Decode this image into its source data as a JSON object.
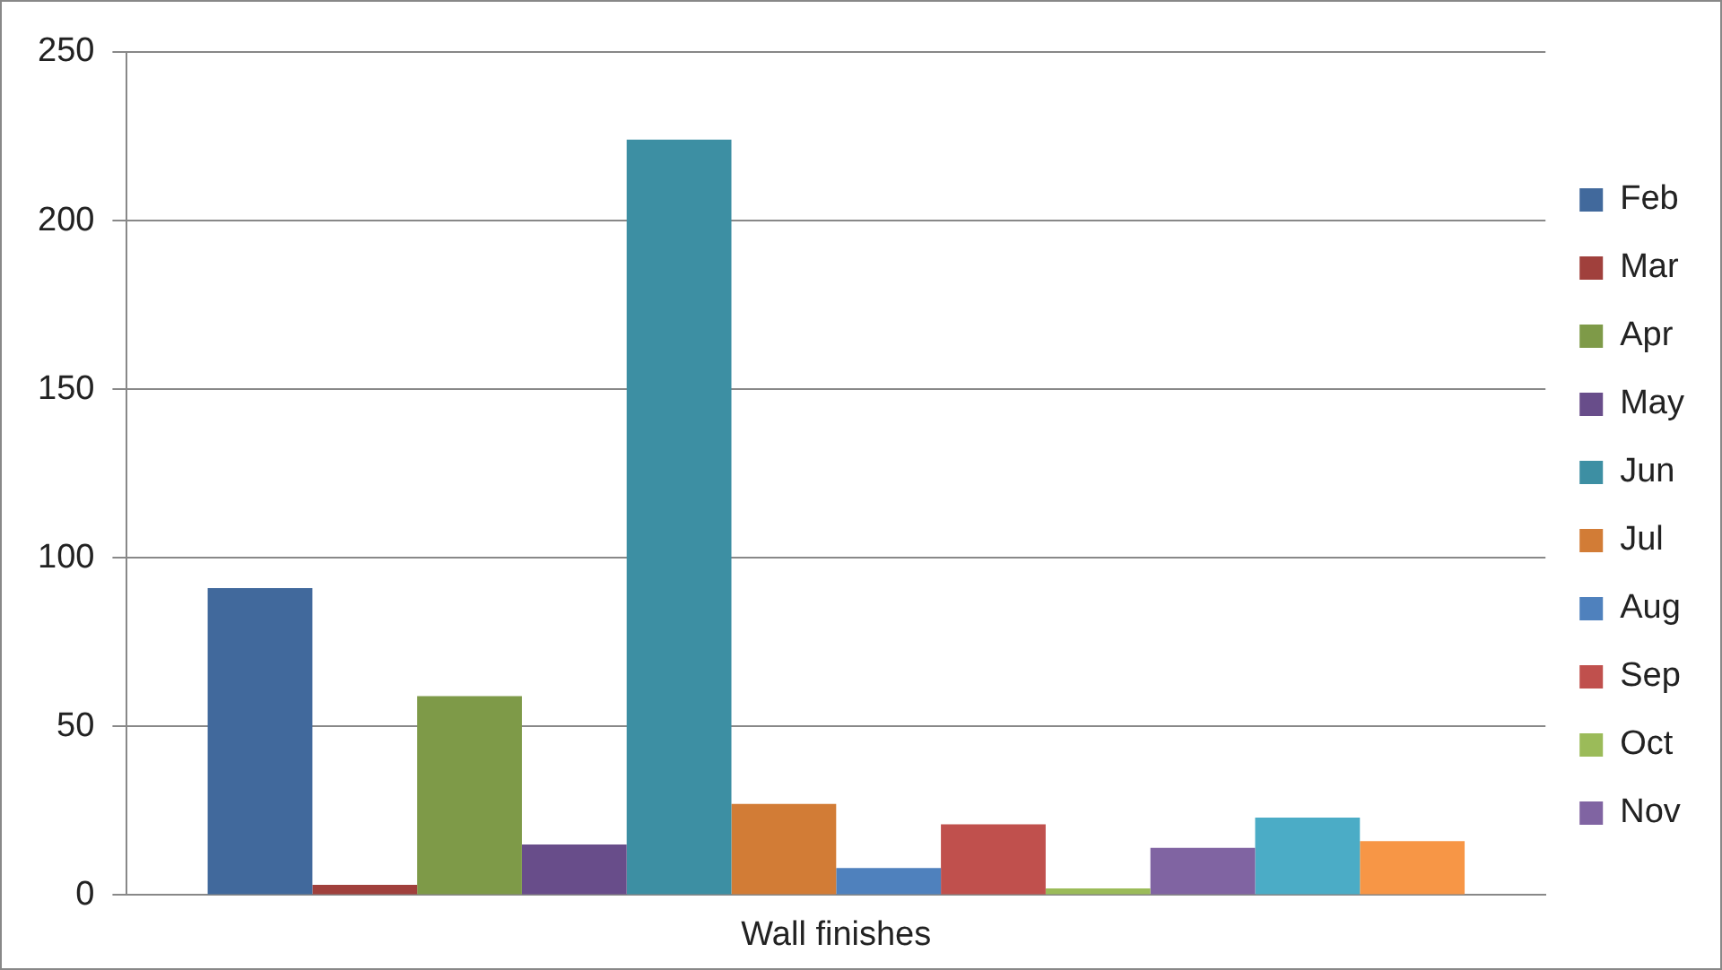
{
  "chart_data": {
    "type": "bar",
    "categories": [
      "Wall finishes"
    ],
    "series": [
      {
        "name": "Feb",
        "color": "#41699c",
        "values": [
          91
        ]
      },
      {
        "name": "Mar",
        "color": "#a0403c",
        "values": [
          3
        ]
      },
      {
        "name": "Apr",
        "color": "#7e9a48",
        "values": [
          59
        ]
      },
      {
        "name": "May",
        "color": "#684d8a",
        "values": [
          15
        ]
      },
      {
        "name": "Jun",
        "color": "#3d8fa3",
        "values": [
          224
        ]
      },
      {
        "name": "Jul",
        "color": "#d27c36",
        "values": [
          27
        ]
      },
      {
        "name": "Aug",
        "color": "#4f81bd",
        "values": [
          8
        ]
      },
      {
        "name": "Sep",
        "color": "#c0504d",
        "values": [
          21
        ]
      },
      {
        "name": "Oct",
        "color": "#9bbb59",
        "values": [
          2
        ]
      },
      {
        "name": "Nov",
        "color": "#8064a2",
        "values": [
          14
        ]
      },
      {
        "color": "#4bacc6",
        "values": [
          23
        ]
      },
      {
        "color": "#f79646",
        "values": [
          16
        ]
      }
    ],
    "ylim": [
      0,
      250
    ],
    "yticks": [
      0,
      50,
      100,
      150,
      200,
      250
    ],
    "grid": "y",
    "legend": "right"
  }
}
